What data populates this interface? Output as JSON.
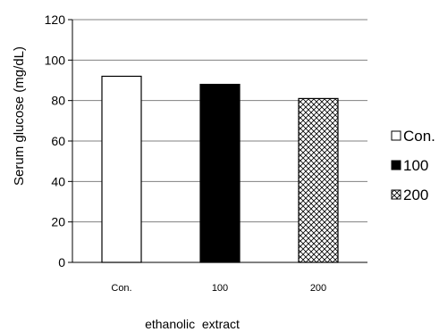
{
  "chart_data": {
    "type": "bar",
    "categories": [
      "Con.",
      "100",
      "200"
    ],
    "values": [
      92,
      88,
      81
    ],
    "title": "",
    "xlabel": "ethanolic  extract",
    "ylabel": "Serum glucose (mg/dL)",
    "ylim": [
      0,
      120
    ],
    "yticks": [
      0,
      20,
      40,
      60,
      80,
      100,
      120
    ],
    "grid": true,
    "legend": {
      "placement": "right",
      "entries": [
        "Con.",
        "100",
        "200"
      ]
    },
    "bar_styles": [
      "white",
      "black",
      "crosshatch"
    ],
    "colors": {
      "outline": "#000000",
      "grid": "#808080",
      "fill_black": "#000000",
      "fill_white": "#ffffff"
    }
  }
}
